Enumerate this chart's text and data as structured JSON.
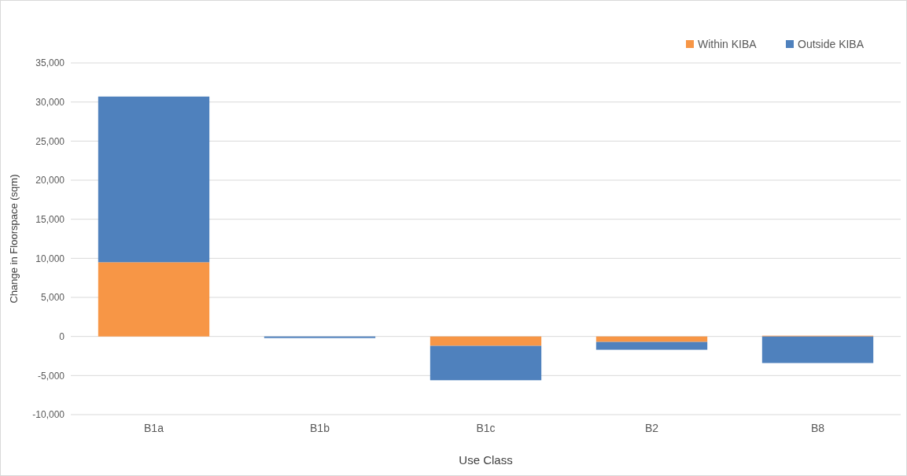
{
  "chart_data": {
    "type": "bar",
    "stacked": true,
    "xlabel": "Use Class",
    "ylabel": "Change in Floorspace (sqm)",
    "categories": [
      "B1a",
      "B1b",
      "B1c",
      "B2",
      "B8"
    ],
    "series": [
      {
        "name": "Within KIBA",
        "color": "#f79646",
        "values": [
          9500,
          null,
          -1200,
          -700,
          100
        ]
      },
      {
        "name": "Outside KIBA",
        "color": "#4f81bd",
        "values": [
          21200,
          -200,
          -4400,
          -1000,
          -3400
        ]
      }
    ],
    "ylim": [
      -10000,
      35000
    ],
    "yticks": [
      {
        "value": -10000,
        "label": "-10,000"
      },
      {
        "value": -5000,
        "label": "-5,000"
      },
      0,
      {
        "value": 5000,
        "label": "5,000"
      },
      {
        "value": 10000,
        "label": "10,000"
      },
      {
        "value": 15000,
        "label": "15,000"
      },
      {
        "value": 20000,
        "label": "20,000"
      },
      {
        "value": 25000,
        "label": "25,000"
      },
      {
        "value": 30000,
        "label": "30,000"
      },
      {
        "value": 35000,
        "label": "35,000"
      }
    ],
    "grid": "y",
    "legend": "top right"
  }
}
